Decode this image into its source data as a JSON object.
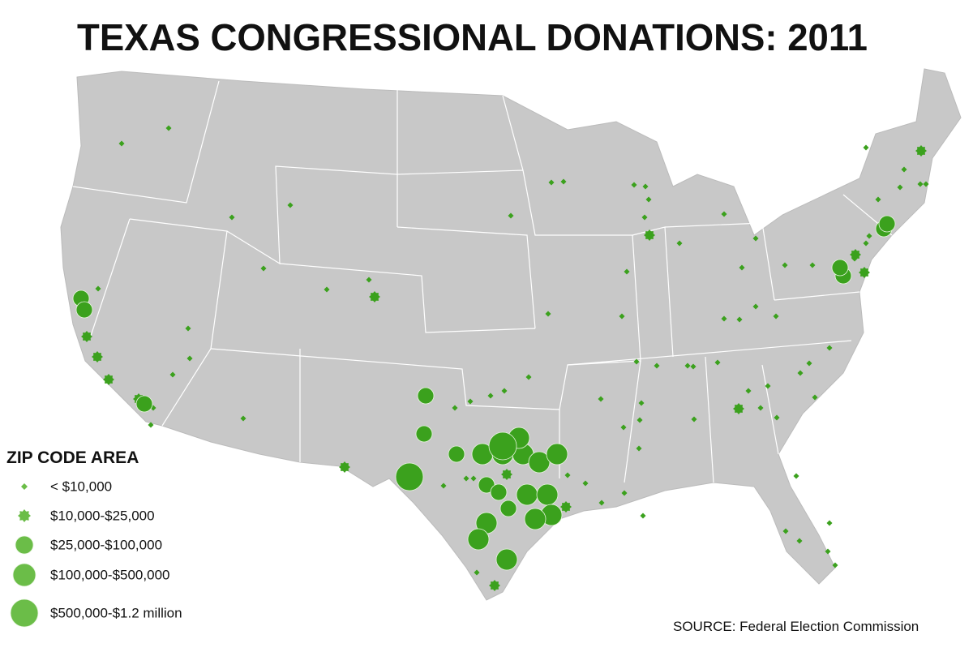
{
  "title": "TEXAS CONGRESSIONAL DONATIONS: 2011",
  "legend": {
    "title": "ZIP CODE AREA",
    "items": [
      "< $10,000",
      "$10,000-$25,000",
      "$25,000-$100,000",
      "$100,000-$500,000",
      "$500,000-$1.2 million"
    ]
  },
  "source": "SOURCE: Federal Election Commission"
}
